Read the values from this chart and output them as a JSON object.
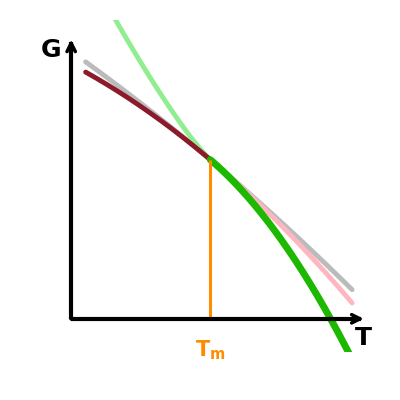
{
  "xlabel": "T",
  "ylabel": "G",
  "Tm": 0.48,
  "bg_color": "#ffffff",
  "axis_color": "#000000",
  "orange_color": "#FF8C00",
  "dark_red_color": "#8B1A2A",
  "light_green_color": "#90EE90",
  "gray_color": "#BBBBBB",
  "bright_green_color": "#1DB800",
  "pink_color": "#FFB6C1",
  "linewidth": 3.5,
  "figsize": [
    4.0,
    4.0
  ],
  "dpi": 100
}
